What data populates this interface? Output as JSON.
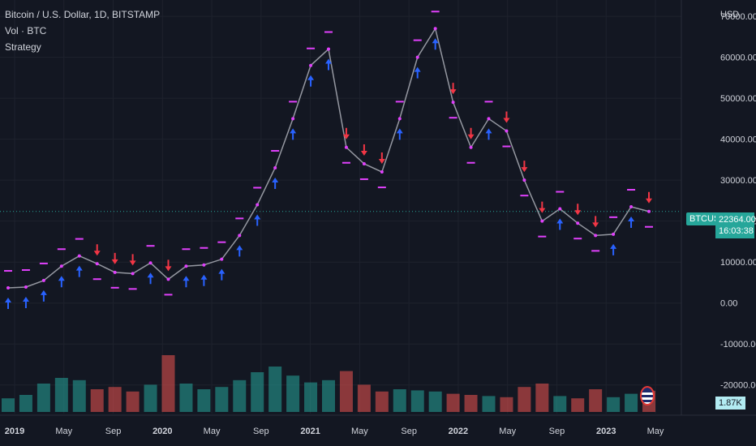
{
  "header": {
    "symbol_line": "Bitcoin / U.S. Dollar, 1D, BITSTAMP",
    "volume_line": "Vol · BTC",
    "strategy_line": "Strategy",
    "currency": "USD"
  },
  "price_tag": {
    "ticker": "BTCUSD",
    "price": "22364.00",
    "countdown": "16:03:38"
  },
  "volume_tag": "1.87K",
  "colors": {
    "background": "#131722",
    "grid": "#1e222d",
    "axis_text": "#d1d4dc",
    "price_tag": "#26a69a",
    "buy_arrow": "#2962ff",
    "sell_arrow": "#f23645",
    "strategy_marker": "#e040fb",
    "volume_up": "#26a69a",
    "volume_down": "#ef5350",
    "volume_shade": "#c8c8c8"
  },
  "chart_data": {
    "type": "line",
    "title": "Bitcoin / U.S. Dollar, 1D, BITSTAMP",
    "xlabel": "",
    "ylabel": "USD",
    "ylim": [
      -25000,
      72000
    ],
    "grid": true,
    "x_ticks": [
      "2019",
      "May",
      "Sep",
      "2020",
      "May",
      "Sep",
      "2021",
      "May",
      "Sep",
      "2022",
      "May",
      "Sep",
      "2023",
      "May"
    ],
    "y_ticks": [
      "70000.00",
      "60000.00",
      "50000.00",
      "40000.00",
      "30000.00",
      "20000.00",
      "10000.00",
      "0.00",
      "-10000.00",
      "-20000.00"
    ],
    "y_tick_values": [
      70000,
      60000,
      50000,
      40000,
      30000,
      20000,
      10000,
      0,
      -10000,
      -20000
    ],
    "x": [
      "2019-01",
      "2019-03",
      "2019-05",
      "2019-06",
      "2019-07",
      "2019-09",
      "2019-11",
      "2020-01",
      "2020-02",
      "2020-03",
      "2020-05",
      "2020-07",
      "2020-09",
      "2020-11",
      "2020-12",
      "2021-01",
      "2021-02",
      "2021-03",
      "2021-04",
      "2021-05",
      "2021-06",
      "2021-07",
      "2021-09",
      "2021-10",
      "2021-11",
      "2021-12",
      "2022-01",
      "2022-03",
      "2022-04",
      "2022-05",
      "2022-06",
      "2022-08",
      "2022-10",
      "2022-11",
      "2023-01",
      "2023-02",
      "2023-03"
    ],
    "series": [
      {
        "name": "BTCUSD",
        "values": [
          3700,
          3900,
          5500,
          9000,
          11500,
          9600,
          7500,
          7200,
          9800,
          5800,
          9000,
          9300,
          10700,
          16500,
          24000,
          33000,
          45000,
          58000,
          62000,
          38000,
          34000,
          32000,
          45000,
          60000,
          67000,
          49000,
          38000,
          45000,
          42000,
          30000,
          20000,
          23000,
          19500,
          16500,
          16800,
          23500,
          22364
        ]
      }
    ],
    "volume": {
      "values": [
        1.2,
        1.5,
        2.5,
        3.0,
        2.8,
        2.0,
        2.2,
        1.8,
        2.4,
        5.0,
        2.5,
        2.0,
        2.2,
        2.8,
        3.5,
        4.0,
        3.2,
        2.6,
        2.8,
        3.6,
        2.4,
        1.8,
        2.0,
        1.9,
        1.8,
        1.6,
        1.5,
        1.4,
        1.3,
        2.2,
        2.5,
        1.4,
        1.2,
        2.0,
        1.3,
        1.6,
        1.87
      ]
    }
  }
}
